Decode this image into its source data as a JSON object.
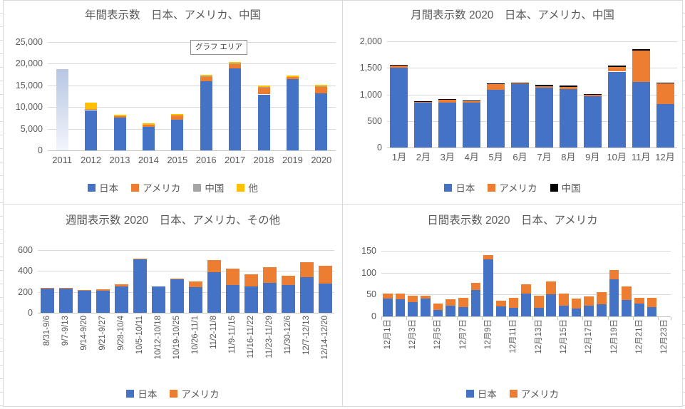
{
  "colors": {
    "japan_blue": "#4472C4",
    "america_orange": "#ED7D31",
    "china_gray": "#A5A5A5",
    "china_black": "#000000",
    "other_yellow": "#FFC000",
    "grid": "#D9D9D9",
    "axis_text": "#595959",
    "panel_border": "#D9D9D9",
    "highlight_gradient_top": "#B7C6E3",
    "highlight_gradient_bottom": "#F2F5FB"
  },
  "chart_data": [
    {
      "id": "yearly",
      "type": "bar",
      "stacked": true,
      "title": "年間表示数　日本、アメリカ、中国",
      "overlay_tooltip": "グラフ エリア",
      "ylim": [
        0,
        25000
      ],
      "yticks": [
        "25,000",
        "20,000",
        "15,000",
        "10,000",
        "5,000",
        "0"
      ],
      "grid": true,
      "legend_position": "bottom",
      "categories": [
        "2011",
        "2012",
        "2013",
        "2014",
        "2015",
        "2016",
        "2017",
        "2018",
        "2019",
        "2020"
      ],
      "series": [
        {
          "name": "日本",
          "color": "#4472C4",
          "values": [
            0,
            9300,
            7600,
            5400,
            7000,
            16000,
            18900,
            12900,
            16400,
            13100
          ]
        },
        {
          "name": "アメリカ",
          "color": "#ED7D31",
          "values": [
            0,
            200,
            300,
            550,
            1050,
            950,
            950,
            1600,
            500,
            1500
          ]
        },
        {
          "name": "中国",
          "color": "#A5A5A5",
          "values": [
            0,
            0,
            0,
            0,
            0,
            50,
            100,
            50,
            0,
            100
          ]
        },
        {
          "name": "他",
          "color": "#FFC000",
          "values": [
            0,
            1500,
            400,
            350,
            350,
            350,
            350,
            300,
            300,
            300
          ]
        }
      ],
      "gradient_bar": {
        "index": 0,
        "category": "2011",
        "total": 18700,
        "top_color": "#B7C6E3",
        "bottom_color": "#F2F5FB"
      }
    },
    {
      "id": "monthly",
      "type": "bar",
      "stacked": true,
      "title": "月間表示数 2020　日本、アメリカ、中国",
      "ylim": [
        0,
        2000
      ],
      "yticks": [
        "2,000",
        "1,500",
        "1,000",
        "500",
        "0"
      ],
      "grid": true,
      "legend_position": "bottom",
      "categories": [
        "1月",
        "2月",
        "3月",
        "4月",
        "5月",
        "6月",
        "7月",
        "8月",
        "9月",
        "10月",
        "11月",
        "12月"
      ],
      "series": [
        {
          "name": "日本",
          "color": "#4472C4",
          "values": [
            1500,
            850,
            840,
            840,
            1090,
            1200,
            1125,
            1100,
            970,
            1430,
            1230,
            820
          ]
        },
        {
          "name": "アメリカ",
          "color": "#ED7D31",
          "values": [
            45,
            15,
            55,
            35,
            100,
            15,
            35,
            45,
            20,
            85,
            590,
            390
          ]
        },
        {
          "name": "中国",
          "color": "#000000",
          "values": [
            10,
            5,
            5,
            15,
            20,
            10,
            20,
            20,
            20,
            25,
            30,
            15
          ]
        }
      ]
    },
    {
      "id": "weekly",
      "type": "bar",
      "stacked": true,
      "title": "週間表示数 2020　日本、アメリカ、その他",
      "ylim": [
        0,
        600
      ],
      "yticks": [
        "600",
        "400",
        "200",
        "0"
      ],
      "grid": true,
      "legend_position": "bottom",
      "xlabels_rotated": true,
      "categories": [
        "8/31-9/6",
        "9/7-9/13",
        "9/14-9/20",
        "9/21-9/27",
        "9/28-10/4",
        "10/5-10/11",
        "10/12-10/18",
        "10/19-10/25",
        "10/26-11/1",
        "11/2-11/8",
        "11/9-11/15",
        "11/16-11/22",
        "11/23-11/29",
        "11/30-12/6",
        "12/7-12/13",
        "12/14-12/20"
      ],
      "series": [
        {
          "name": "日本",
          "color": "#4472C4",
          "values": [
            230,
            232,
            210,
            210,
            255,
            510,
            250,
            318,
            248,
            388,
            265,
            255,
            285,
            263,
            343,
            278
          ]
        },
        {
          "name": "アメリカ",
          "color": "#ED7D31",
          "values": [
            8,
            5,
            5,
            12,
            15,
            5,
            0,
            10,
            55,
            120,
            160,
            112,
            152,
            95,
            140,
            175
          ]
        }
      ]
    },
    {
      "id": "daily",
      "type": "bar",
      "stacked": true,
      "title": "日間表示数 2020　日本、アメリカ",
      "ylim": [
        0,
        150
      ],
      "yticks": [
        "150",
        "100",
        "50",
        "0"
      ],
      "grid": true,
      "legend_position": "bottom",
      "xlabels_rotated": true,
      "slots": 23,
      "xtick_step_slots": 2,
      "axis_tick_marks": true,
      "categories": [
        "12月1日",
        "12月3日",
        "12月5日",
        "12月7日",
        "12月9日",
        "12月11日",
        "12月13日",
        "12月15日",
        "12月17日",
        "12月19日",
        "12月21日",
        "12月23日"
      ],
      "series": [
        {
          "name": "日本",
          "color": "#4472C4",
          "values": [
            41,
            39,
            33,
            41,
            15,
            25,
            21,
            60,
            130,
            23,
            20,
            52,
            20,
            50,
            25,
            18,
            25,
            28,
            85,
            38,
            30,
            21
          ]
        },
        {
          "name": "アメリカ",
          "color": "#ED7D31",
          "values": [
            11,
            13,
            14,
            6,
            14,
            14,
            21,
            17,
            10,
            13,
            22,
            22,
            27,
            30,
            27,
            23,
            20,
            28,
            21,
            30,
            12,
            21
          ]
        }
      ]
    }
  ]
}
